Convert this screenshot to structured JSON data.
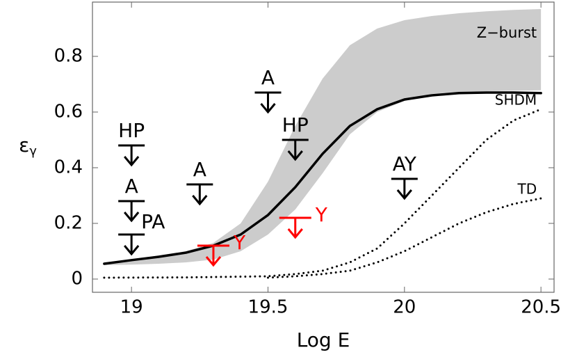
{
  "chart_data": {
    "type": "line",
    "xlabel": "Log E",
    "ylabel": "ε",
    "ylabel_sub": "γ",
    "xlim": [
      18.857,
      20.548
    ],
    "ylim": [
      -0.0475,
      0.995
    ],
    "xticks": [
      19,
      19.5,
      20,
      20.5
    ],
    "yticks": [
      0,
      0.2,
      0.4,
      0.6,
      0.8
    ],
    "series": [
      {
        "name": "Z−burst",
        "kind": "band",
        "color": "#cccccc",
        "x": [
          18.9,
          19.0,
          19.1,
          19.2,
          19.3,
          19.4,
          19.5,
          19.6,
          19.7,
          19.8,
          19.9,
          20.0,
          20.1,
          20.2,
          20.3,
          20.4,
          20.5
        ],
        "upper": [
          0.06,
          0.07,
          0.085,
          0.1,
          0.13,
          0.2,
          0.35,
          0.55,
          0.72,
          0.84,
          0.9,
          0.93,
          0.945,
          0.955,
          0.962,
          0.967,
          0.97
        ],
        "lower": [
          0.05,
          0.052,
          0.055,
          0.06,
          0.07,
          0.1,
          0.16,
          0.25,
          0.38,
          0.52,
          0.6,
          0.64,
          0.665,
          0.672,
          0.675,
          0.677,
          0.678
        ]
      },
      {
        "kind": "solid",
        "color": "#000000",
        "x": [
          18.9,
          19.0,
          19.1,
          19.2,
          19.3,
          19.4,
          19.5,
          19.6,
          19.7,
          19.8,
          19.9,
          20.0,
          20.1,
          20.2,
          20.3,
          20.4,
          20.5
        ],
        "values": [
          0.055,
          0.068,
          0.08,
          0.095,
          0.12,
          0.16,
          0.23,
          0.33,
          0.45,
          0.55,
          0.61,
          0.645,
          0.66,
          0.668,
          0.67,
          0.67,
          0.668
        ]
      },
      {
        "name": "SHDM",
        "kind": "dotted",
        "color": "#000000",
        "x": [
          18.9,
          19.2,
          19.5,
          19.6,
          19.7,
          19.8,
          19.9,
          20.0,
          20.1,
          20.2,
          20.3,
          20.4,
          20.5
        ],
        "values": [
          0.005,
          0.006,
          0.01,
          0.018,
          0.03,
          0.06,
          0.11,
          0.2,
          0.3,
          0.4,
          0.5,
          0.57,
          0.61
        ]
      },
      {
        "name": "TD",
        "kind": "dotted",
        "color": "#000000",
        "x": [
          19.5,
          19.6,
          19.7,
          19.8,
          19.9,
          20.0,
          20.1,
          20.2,
          20.3,
          20.4,
          20.5
        ],
        "values": [
          0.005,
          0.01,
          0.018,
          0.03,
          0.06,
          0.1,
          0.15,
          0.2,
          0.24,
          0.27,
          0.29
        ]
      }
    ],
    "limits": [
      {
        "label": "HP",
        "x": 19.0,
        "y": 0.48,
        "color": "#000000",
        "label_position": "above"
      },
      {
        "label": "A",
        "x": 19.0,
        "y": 0.28,
        "color": "#000000",
        "label_position": "above"
      },
      {
        "label": "PA",
        "x": 19.0,
        "y": 0.16,
        "color": "#000000",
        "label_position": "above-right"
      },
      {
        "label": "A",
        "x": 19.25,
        "y": 0.34,
        "color": "#000000",
        "label_position": "above"
      },
      {
        "label": "A",
        "x": 19.5,
        "y": 0.67,
        "color": "#000000",
        "label_position": "above"
      },
      {
        "label": "HP",
        "x": 19.6,
        "y": 0.5,
        "color": "#000000",
        "label_position": "above"
      },
      {
        "label": "AY",
        "x": 20.0,
        "y": 0.36,
        "color": "#000000",
        "label_position": "above"
      },
      {
        "label": "Y",
        "x": 19.3,
        "y": 0.12,
        "color": "#ff0000",
        "label_position": "right"
      },
      {
        "label": "Y",
        "x": 19.6,
        "y": 0.22,
        "color": "#ff0000",
        "label_position": "right"
      }
    ]
  }
}
